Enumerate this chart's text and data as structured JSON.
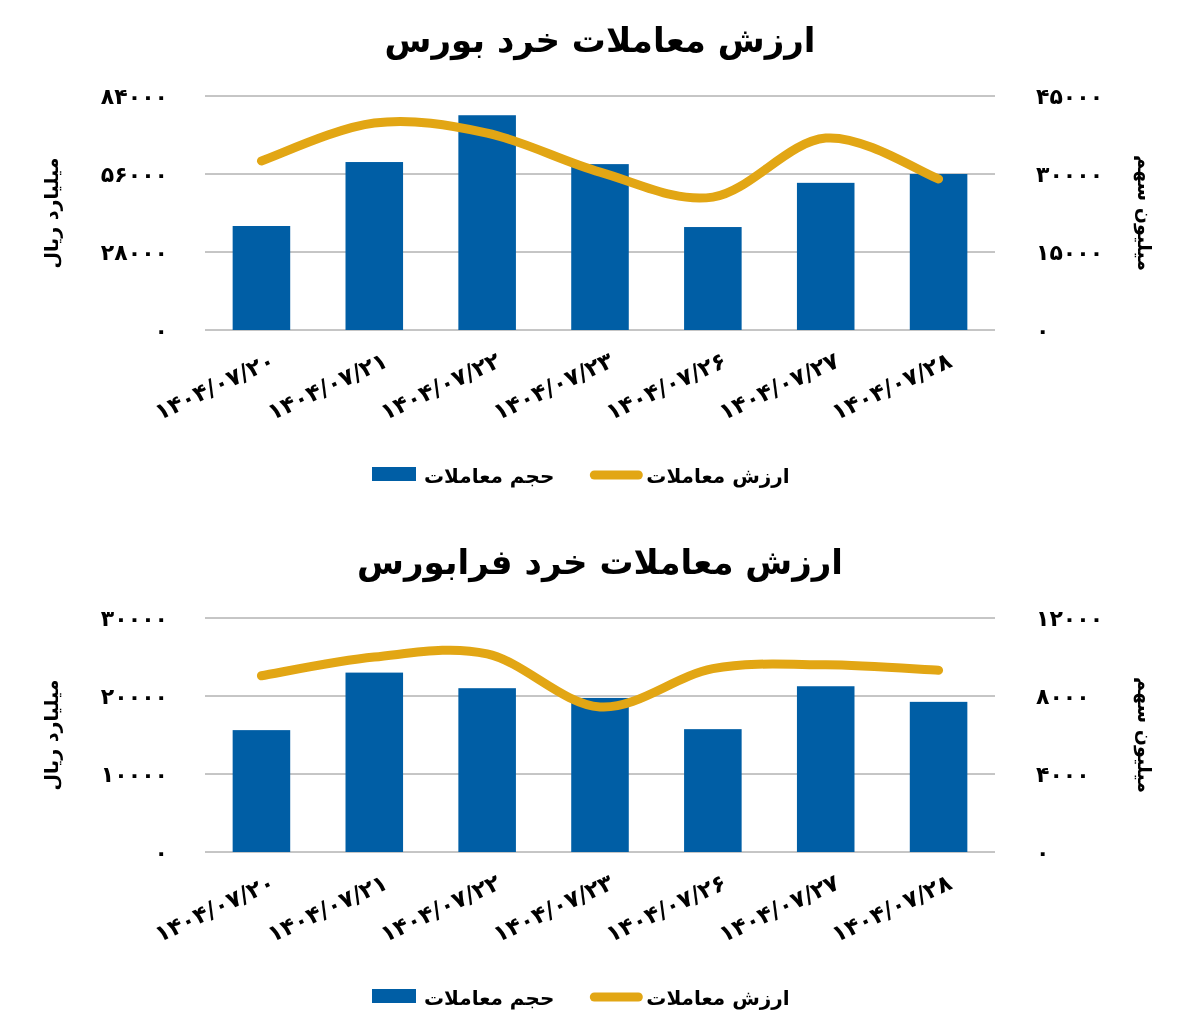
{
  "chart_data": [
    {
      "type": "bar",
      "title": "ارزش معاملات خرد بورس",
      "ylabel": "میلیارد ریال",
      "y2label": "میلیون سهم",
      "categories": [
        "۱۴۰۴/۰۷/۲۰",
        "۱۴۰۴/۰۷/۲۱",
        "۱۴۰۴/۰۷/۲۲",
        "۱۴۰۴/۰۷/۲۳",
        "۱۴۰۴/۰۷/۲۶",
        "۱۴۰۴/۰۷/۲۷",
        "۱۴۰۴/۰۷/۲۸"
      ],
      "series": [
        {
          "name": "حجم معاملات",
          "axis": "y2",
          "color": "#005ea5",
          "values": [
            20000,
            32300,
            41300,
            31900,
            19800,
            28300,
            30000
          ]
        },
        {
          "name": "ارزش معاملات",
          "type": "line",
          "color": "#e2a614",
          "values": [
            60700,
            74300,
            70700,
            56700,
            47700,
            68900,
            54200
          ]
        }
      ],
      "ylim": [
        0,
        84000
      ],
      "yticks": [
        {
          "value": 0,
          "label": "۰"
        },
        {
          "value": 28000,
          "label": "۲۸۰۰۰"
        },
        {
          "value": 56000,
          "label": "۵۶۰۰۰"
        },
        {
          "value": 84000,
          "label": "۸۴۰۰۰"
        }
      ],
      "y2lim": [
        0,
        45000
      ],
      "y2ticks": [
        {
          "value": 0,
          "label": "۰"
        },
        {
          "value": 15000,
          "label": "۱۵۰۰۰"
        },
        {
          "value": 30000,
          "label": "۳۰۰۰۰"
        },
        {
          "value": 45000,
          "label": "۴۵۰۰۰"
        }
      ],
      "grid": "y",
      "legend": "bottom"
    },
    {
      "type": "bar",
      "title": "ارزش معاملات خرد فرابورس",
      "ylabel": "میلیارد ریال",
      "y2label": "میلیون سهم",
      "categories": [
        "۱۴۰۴/۰۷/۲۰",
        "۱۴۰۴/۰۷/۲۱",
        "۱۴۰۴/۰۷/۲۲",
        "۱۴۰۴/۰۷/۲۳",
        "۱۴۰۴/۰۷/۲۶",
        "۱۴۰۴/۰۷/۲۷",
        "۱۴۰۴/۰۷/۲۸"
      ],
      "series": [
        {
          "name": "حجم معاملات",
          "axis": "y2",
          "color": "#005ea5",
          "values": [
            6250,
            9200,
            8400,
            7900,
            6300,
            8500,
            7700
          ]
        },
        {
          "name": "ارزش معاملات",
          "type": "line",
          "color": "#e2a614",
          "values": [
            22600,
            25000,
            25400,
            18600,
            23500,
            24000,
            23300
          ]
        }
      ],
      "ylim": [
        0,
        30000
      ],
      "yticks": [
        {
          "value": 0,
          "label": "۰"
        },
        {
          "value": 10000,
          "label": "۱۰۰۰۰"
        },
        {
          "value": 20000,
          "label": "۲۰۰۰۰"
        },
        {
          "value": 30000,
          "label": "۳۰۰۰۰"
        }
      ],
      "y2lim": [
        0,
        12000
      ],
      "y2ticks": [
        {
          "value": 0,
          "label": "۰"
        },
        {
          "value": 4000,
          "label": "۴۰۰۰"
        },
        {
          "value": 8000,
          "label": "۸۰۰۰"
        },
        {
          "value": 12000,
          "label": "۱۲۰۰۰"
        }
      ],
      "grid": "y",
      "legend": "bottom"
    }
  ]
}
